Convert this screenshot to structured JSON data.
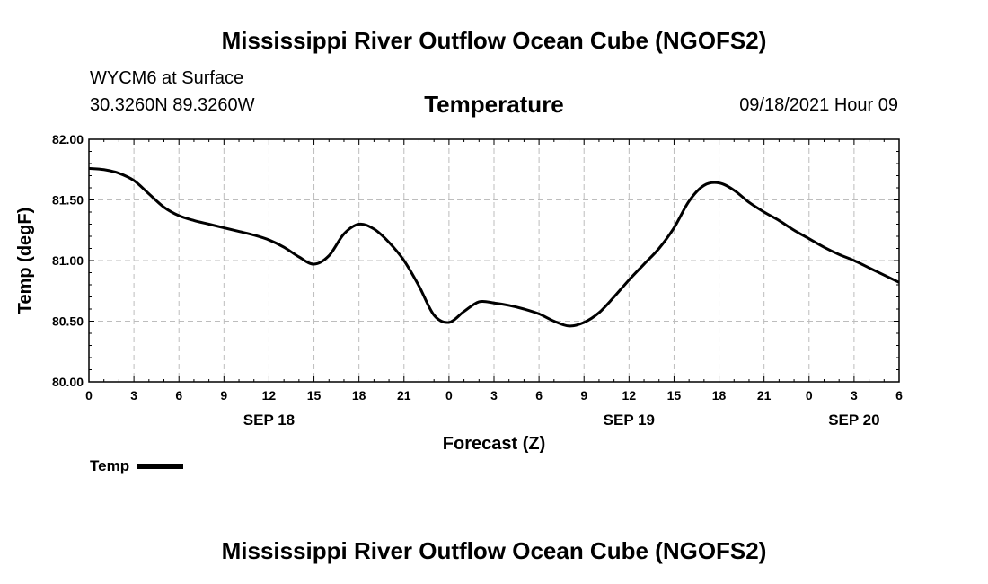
{
  "header": {
    "title": "Mississippi River Outflow Ocean Cube (NGOFS2)",
    "station": "WYCM6 at Surface",
    "coords": "30.3260N  89.3260W",
    "variable": "Temperature",
    "datetime": "09/18/2021 Hour 09"
  },
  "footer": {
    "title": "Mississippi River Outflow Ocean Cube (NGOFS2)"
  },
  "legend": {
    "label": "Temp"
  },
  "chart_data": {
    "type": "line",
    "title": "Temperature",
    "xlabel": "Forecast (Z)",
    "ylabel": "Temp (degF)",
    "xlim": [
      0,
      54
    ],
    "ylim": [
      80.0,
      82.0
    ],
    "grid": true,
    "x_ticks": [
      0,
      3,
      6,
      9,
      12,
      15,
      18,
      21,
      24,
      27,
      30,
      33,
      36,
      39,
      42,
      45,
      48,
      51,
      54
    ],
    "x_tick_labels": [
      "0",
      "3",
      "6",
      "9",
      "12",
      "15",
      "18",
      "21",
      "0",
      "3",
      "6",
      "9",
      "12",
      "15",
      "18",
      "21",
      "0",
      "3",
      "6"
    ],
    "day_labels": [
      {
        "x": 12,
        "label": "SEP 18"
      },
      {
        "x": 36,
        "label": "SEP 19"
      },
      {
        "x": 51,
        "label": "SEP 20"
      }
    ],
    "y_ticks": [
      80.0,
      80.5,
      81.0,
      81.5,
      82.0
    ],
    "y_tick_labels": [
      "80.00",
      "80.50",
      "81.00",
      "81.50",
      "82.00"
    ],
    "series": [
      {
        "name": "Temp",
        "color": "#000000",
        "x": [
          0,
          1,
          2,
          3,
          4,
          5,
          6,
          7,
          8,
          9,
          10,
          11,
          12,
          13,
          14,
          15,
          16,
          17,
          18,
          19,
          20,
          21,
          22,
          23,
          24,
          25,
          26,
          27,
          28,
          29,
          30,
          31,
          32,
          33,
          34,
          35,
          36,
          37,
          38,
          39,
          40,
          41,
          42,
          43,
          44,
          45,
          46,
          47,
          48,
          49,
          50,
          51,
          52,
          53,
          54
        ],
        "values": [
          81.76,
          81.75,
          81.72,
          81.66,
          81.55,
          81.44,
          81.37,
          81.33,
          81.3,
          81.27,
          81.24,
          81.21,
          81.17,
          81.11,
          81.03,
          80.97,
          81.04,
          81.22,
          81.3,
          81.26,
          81.15,
          81.0,
          80.79,
          80.55,
          80.49,
          80.58,
          80.66,
          80.65,
          80.63,
          80.6,
          80.56,
          80.5,
          80.46,
          80.49,
          80.57,
          80.7,
          80.84,
          80.97,
          81.1,
          81.27,
          81.49,
          81.62,
          81.64,
          81.58,
          81.48,
          81.4,
          81.33,
          81.25,
          81.18,
          81.11,
          81.05,
          81.0,
          80.94,
          80.88,
          80.82
        ]
      }
    ]
  }
}
